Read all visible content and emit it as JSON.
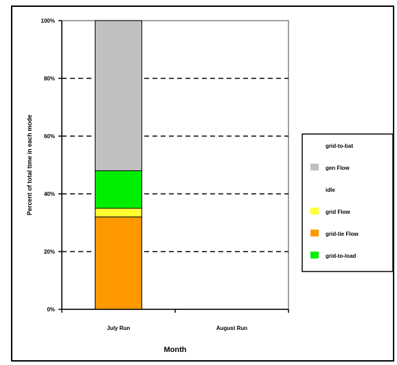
{
  "chart_data": {
    "type": "bar",
    "stacked": true,
    "title": "",
    "xlabel": "Month",
    "ylabel": "Percent of total time in each mode",
    "categories": [
      "July Run",
      "August Run"
    ],
    "ylim": [
      0,
      100
    ],
    "y_ticks": [
      "0%",
      "20%",
      "40%",
      "60%",
      "80%",
      "100%"
    ],
    "grid": "dashed horizontal",
    "legend_position": "right",
    "series": [
      {
        "name": "grid-tie Flow",
        "color": "#ff9900",
        "values": [
          32,
          0
        ]
      },
      {
        "name": "grid Flow",
        "color": "#ffff33",
        "values": [
          3,
          0
        ]
      },
      {
        "name": "grid-to-load",
        "color": "#00ee00",
        "values": [
          13,
          0
        ]
      },
      {
        "name": "gen Flow",
        "color": "#c0c0c0",
        "values": [
          52,
          0
        ]
      },
      {
        "name": "idle",
        "color": "#ffffff",
        "values": [
          0,
          0
        ]
      },
      {
        "name": "grid-to-bat",
        "color": "#ffffff",
        "values": [
          0,
          0
        ]
      }
    ],
    "legend_order": [
      "grid-to-bat",
      "gen Flow",
      "idle",
      "grid Flow",
      "grid-tie Flow",
      "grid-to-load"
    ]
  }
}
